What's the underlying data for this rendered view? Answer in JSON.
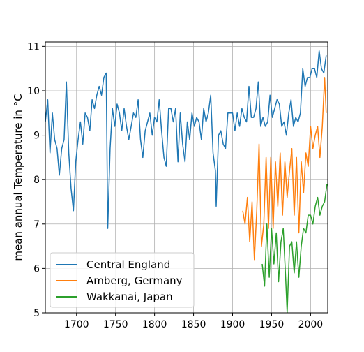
{
  "chart_data": {
    "type": "line",
    "title": "",
    "xlabel": "",
    "ylabel": "mean annual Temperature in °C",
    "xlim": [
      1660,
      2022
    ],
    "ylim": [
      5,
      11.1
    ],
    "xticks": [
      1700,
      1750,
      1800,
      1850,
      1900,
      1950,
      2000
    ],
    "yticks": [
      5,
      6,
      7,
      8,
      9,
      10,
      11
    ],
    "xtick_labels": [
      "1700",
      "1750",
      "1800",
      "1850",
      "1900",
      "1950",
      "2000"
    ],
    "ytick_labels": [
      "5",
      "6",
      "7",
      "8",
      "9",
      "10",
      "11"
    ],
    "grid": true,
    "legend_position": "lower-left",
    "series": [
      {
        "name": "Central England",
        "color": "#1f77b4",
        "x": [
          1660,
          1663,
          1666,
          1669,
          1672,
          1675,
          1678,
          1681,
          1684,
          1687,
          1690,
          1693,
          1696,
          1699,
          1702,
          1705,
          1708,
          1711,
          1714,
          1717,
          1720,
          1723,
          1726,
          1729,
          1732,
          1735,
          1738,
          1740,
          1743,
          1746,
          1749,
          1752,
          1755,
          1758,
          1761,
          1764,
          1767,
          1770,
          1773,
          1776,
          1779,
          1782,
          1785,
          1788,
          1791,
          1794,
          1797,
          1800,
          1803,
          1806,
          1809,
          1812,
          1815,
          1818,
          1821,
          1824,
          1827,
          1830,
          1833,
          1836,
          1839,
          1842,
          1845,
          1848,
          1851,
          1854,
          1857,
          1860,
          1863,
          1866,
          1869,
          1872,
          1875,
          1878,
          1879,
          1882,
          1885,
          1888,
          1891,
          1894,
          1897,
          1900,
          1903,
          1906,
          1909,
          1912,
          1915,
          1918,
          1921,
          1924,
          1927,
          1930,
          1933,
          1936,
          1939,
          1942,
          1945,
          1948,
          1951,
          1954,
          1957,
          1960,
          1963,
          1966,
          1969,
          1972,
          1975,
          1978,
          1981,
          1984,
          1987,
          1990,
          1993,
          1996,
          1999,
          2002,
          2005,
          2008,
          2011,
          2014,
          2017,
          2020
        ],
        "y": [
          9.3,
          9.8,
          8.6,
          9.5,
          8.9,
          8.7,
          8.1,
          8.7,
          8.9,
          10.2,
          8.6,
          7.8,
          7.3,
          8.4,
          8.9,
          9.3,
          8.8,
          9.5,
          9.4,
          9.1,
          9.8,
          9.6,
          9.9,
          10.1,
          9.9,
          10.3,
          10.4,
          6.9,
          8.7,
          9.6,
          9.2,
          9.7,
          9.5,
          9.1,
          9.6,
          9.2,
          8.9,
          9.2,
          9.5,
          9.4,
          9.8,
          8.9,
          8.5,
          9.1,
          9.3,
          9.5,
          9.0,
          9.4,
          9.3,
          9.8,
          9.1,
          8.5,
          8.3,
          9.6,
          9.6,
          9.3,
          9.6,
          8.4,
          9.5,
          8.8,
          8.4,
          9.3,
          8.9,
          9.5,
          9.2,
          9.4,
          9.3,
          8.9,
          9.6,
          9.3,
          9.5,
          9.9,
          8.6,
          8.2,
          7.4,
          9.0,
          9.1,
          8.8,
          8.7,
          9.5,
          9.5,
          9.5,
          9.1,
          9.5,
          9.2,
          9.6,
          9.4,
          9.3,
          10.1,
          9.4,
          9.4,
          9.6,
          10.2,
          9.2,
          9.4,
          9.2,
          9.3,
          9.9,
          9.4,
          9.6,
          9.8,
          9.7,
          9.2,
          9.3,
          9.0,
          9.5,
          9.8,
          9.2,
          9.4,
          9.3,
          9.5,
          10.5,
          10.1,
          10.3,
          10.3,
          10.5,
          10.5,
          10.3,
          10.9,
          10.5,
          10.4,
          10.8
        ]
      },
      {
        "name": "Amberg, Germany",
        "color": "#ff7f0e",
        "x": [
          1913,
          1916,
          1919,
          1922,
          1925,
          1928,
          1931,
          1934,
          1937,
          1940,
          1943,
          1946,
          1949,
          1952,
          1955,
          1958,
          1961,
          1964,
          1967,
          1970,
          1973,
          1976,
          1979,
          1982,
          1985,
          1988,
          1991,
          1994,
          1997,
          2000,
          2003,
          2006,
          2009,
          2012,
          2015,
          2018,
          2020
        ],
        "y": [
          7.3,
          7.0,
          7.6,
          6.6,
          7.5,
          6.2,
          7.3,
          8.8,
          6.5,
          7.0,
          8.5,
          6.9,
          8.5,
          6.9,
          8.4,
          7.4,
          8.6,
          7.2,
          8.4,
          7.6,
          8.2,
          8.7,
          7.2,
          8.5,
          6.8,
          8.4,
          7.7,
          8.6,
          8.3,
          9.2,
          8.7,
          9.0,
          9.2,
          8.5,
          9.2,
          10.3,
          9.5
        ]
      },
      {
        "name": "Wakkanai, Japan",
        "color": "#2ca02c",
        "x": [
          1938,
          1941,
          1944,
          1947,
          1950,
          1953,
          1956,
          1959,
          1962,
          1965,
          1968,
          1970,
          1973,
          1976,
          1979,
          1982,
          1985,
          1988,
          1991,
          1994,
          1997,
          2000,
          2003,
          2006,
          2009,
          2012,
          2015,
          2018,
          2021
        ],
        "y": [
          6.1,
          5.6,
          7.0,
          5.8,
          6.9,
          6.1,
          6.8,
          5.7,
          6.6,
          6.9,
          5.8,
          5.0,
          6.5,
          6.6,
          5.9,
          6.6,
          5.8,
          6.5,
          6.9,
          6.8,
          7.2,
          7.2,
          7.0,
          7.4,
          7.6,
          7.2,
          7.4,
          7.5,
          7.9
        ]
      }
    ]
  }
}
